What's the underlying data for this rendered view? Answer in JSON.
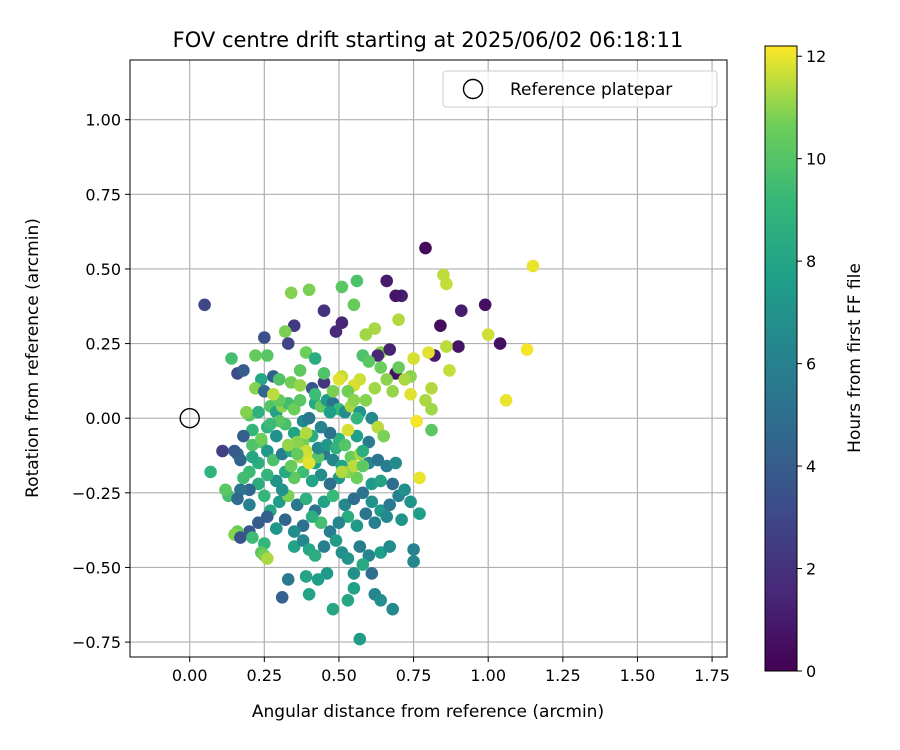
{
  "chart_data": {
    "type": "scatter",
    "title": "FOV centre drift starting at 2025/06/02 06:18:11",
    "xlabel": "Angular distance from reference (arcmin)",
    "ylabel": "Rotation from reference (arcmin)",
    "xlim": [
      -0.2,
      1.8
    ],
    "ylim": [
      -0.8,
      1.2
    ],
    "xticks": [
      0.0,
      0.25,
      0.5,
      0.75,
      1.0,
      1.25,
      1.5,
      1.75
    ],
    "xtick_labels": [
      "0.00",
      "0.25",
      "0.50",
      "0.75",
      "1.00",
      "1.25",
      "1.50",
      "1.75"
    ],
    "yticks": [
      -0.75,
      -0.5,
      -0.25,
      0.0,
      0.25,
      0.5,
      0.75,
      1.0
    ],
    "ytick_labels": [
      "−0.75",
      "−0.50",
      "−0.25",
      "0.00",
      "0.25",
      "0.50",
      "0.75",
      "1.00"
    ],
    "grid": true,
    "legend": {
      "position": "top-right",
      "entries": [
        {
          "label": "Reference platepar",
          "marker": "open-circle"
        }
      ]
    },
    "reference_point": {
      "x": 0.0,
      "y": 0.0
    },
    "colorbar": {
      "label": "Hours from first FF file",
      "colormap": "viridis",
      "range": [
        0,
        12.2
      ],
      "ticks": [
        0,
        2,
        4,
        6,
        8,
        10,
        12
      ],
      "tick_labels": [
        "0",
        "2",
        "4",
        "6",
        "8",
        "10",
        "12"
      ]
    },
    "points": [
      [
        0.79,
        0.57,
        0.3
      ],
      [
        1.15,
        0.51,
        12.0
      ],
      [
        0.05,
        0.38,
        3.0
      ],
      [
        0.85,
        0.48,
        11.5
      ],
      [
        0.86,
        0.45,
        11.6
      ],
      [
        0.66,
        0.46,
        1.0
      ],
      [
        0.71,
        0.41,
        1.2
      ],
      [
        0.69,
        0.41,
        0.8
      ],
      [
        0.99,
        0.38,
        0.5
      ],
      [
        1.04,
        0.25,
        0.6
      ],
      [
        0.84,
        0.31,
        0.4
      ],
      [
        0.82,
        0.21,
        0.9
      ],
      [
        0.9,
        0.24,
        0.7
      ],
      [
        0.91,
        0.36,
        1.1
      ],
      [
        0.51,
        0.32,
        1.4
      ],
      [
        0.49,
        0.29,
        1.6
      ],
      [
        0.45,
        0.36,
        2.0
      ],
      [
        0.35,
        0.31,
        2.3
      ],
      [
        0.25,
        0.27,
        3.4
      ],
      [
        0.56,
        0.46,
        9.8
      ],
      [
        0.51,
        0.44,
        10.2
      ],
      [
        0.55,
        0.38,
        10.5
      ],
      [
        0.4,
        0.43,
        10.8
      ],
      [
        0.34,
        0.42,
        10.9
      ],
      [
        0.62,
        0.3,
        11.3
      ],
      [
        0.7,
        0.33,
        11.4
      ],
      [
        0.59,
        0.28,
        11.2
      ],
      [
        0.64,
        0.22,
        11.0
      ],
      [
        0.75,
        0.2,
        11.8
      ],
      [
        0.8,
        0.22,
        11.9
      ],
      [
        1.13,
        0.23,
        12.1
      ],
      [
        1.0,
        0.28,
        11.7
      ],
      [
        1.06,
        0.06,
        12.0
      ],
      [
        0.86,
        0.24,
        11.5
      ],
      [
        0.87,
        0.16,
        11.6
      ],
      [
        0.81,
        0.1,
        11.4
      ],
      [
        0.79,
        0.06,
        11.3
      ],
      [
        0.81,
        0.03,
        11.2
      ],
      [
        0.76,
        -0.01,
        12.1
      ],
      [
        0.81,
        -0.04,
        10.2
      ],
      [
        0.77,
        -0.2,
        12.0
      ],
      [
        0.74,
        0.14,
        11.0
      ],
      [
        0.69,
        0.15,
        0.6
      ],
      [
        0.63,
        0.21,
        1.5
      ],
      [
        0.67,
        0.23,
        1.3
      ],
      [
        0.57,
        0.13,
        11.7
      ],
      [
        0.55,
        0.11,
        11.8
      ],
      [
        0.51,
        0.14,
        11.6
      ],
      [
        0.45,
        0.12,
        2.2
      ],
      [
        0.41,
        0.1,
        3.6
      ],
      [
        0.14,
        0.2,
        9.6
      ],
      [
        0.16,
        0.15,
        3.2
      ],
      [
        0.18,
        0.16,
        4.0
      ],
      [
        0.22,
        0.21,
        10.4
      ],
      [
        0.26,
        0.21,
        10.1
      ],
      [
        0.28,
        0.14,
        4.2
      ],
      [
        0.3,
        0.13,
        9.9
      ],
      [
        0.32,
        0.29,
        10.8
      ],
      [
        0.33,
        0.25,
        2.8
      ],
      [
        0.39,
        0.22,
        10.6
      ],
      [
        0.42,
        0.2,
        8.5
      ],
      [
        0.37,
        0.16,
        10.3
      ],
      [
        0.34,
        0.12,
        10.7
      ],
      [
        0.37,
        0.11,
        11.1
      ],
      [
        0.24,
        0.13,
        8.1
      ],
      [
        0.22,
        0.1,
        10.9
      ],
      [
        0.25,
        0.09,
        4.5
      ],
      [
        0.2,
        0.01,
        10.2
      ],
      [
        0.21,
        -0.04,
        9.1
      ],
      [
        0.23,
        0.02,
        8.7
      ],
      [
        0.27,
        0.04,
        10.0
      ],
      [
        0.29,
        0.02,
        7.8
      ],
      [
        0.31,
        0.04,
        11.0
      ],
      [
        0.33,
        0.05,
        9.5
      ],
      [
        0.35,
        0.03,
        10.6
      ],
      [
        0.38,
        -0.01,
        6.5
      ],
      [
        0.4,
        0.0,
        5.5
      ],
      [
        0.42,
        0.05,
        8.2
      ],
      [
        0.44,
        0.04,
        10.4
      ],
      [
        0.46,
        0.06,
        7.4
      ],
      [
        0.48,
        0.05,
        5.2
      ],
      [
        0.5,
        0.03,
        9.2
      ],
      [
        0.52,
        0.02,
        6.8
      ],
      [
        0.54,
        0.04,
        11.3
      ],
      [
        0.57,
        0.02,
        7.1
      ],
      [
        0.59,
        0.06,
        10.9
      ],
      [
        0.61,
        0.0,
        6.4
      ],
      [
        0.63,
        -0.03,
        11.5
      ],
      [
        0.65,
        -0.06,
        10.8
      ],
      [
        0.6,
        -0.08,
        5.7
      ],
      [
        0.56,
        -0.06,
        7.7
      ],
      [
        0.53,
        -0.04,
        11.8
      ],
      [
        0.5,
        -0.07,
        8.9
      ],
      [
        0.47,
        -0.05,
        5.1
      ],
      [
        0.44,
        -0.03,
        6.1
      ],
      [
        0.41,
        -0.06,
        8.4
      ],
      [
        0.38,
        -0.08,
        10.7
      ],
      [
        0.35,
        -0.05,
        7.9
      ],
      [
        0.32,
        -0.02,
        9.7
      ],
      [
        0.29,
        -0.06,
        6.9
      ],
      [
        0.26,
        -0.03,
        8.8
      ],
      [
        0.24,
        -0.08,
        10.1
      ],
      [
        0.21,
        -0.09,
        9.9
      ],
      [
        0.18,
        -0.06,
        4.1
      ],
      [
        0.16,
        -0.12,
        4.8
      ],
      [
        0.11,
        -0.11,
        2.7
      ],
      [
        0.15,
        -0.11,
        3.9
      ],
      [
        0.17,
        -0.14,
        4.4
      ],
      [
        0.2,
        -0.18,
        9.3
      ],
      [
        0.23,
        -0.15,
        8.6
      ],
      [
        0.26,
        -0.11,
        7.3
      ],
      [
        0.28,
        -0.14,
        9.8
      ],
      [
        0.31,
        -0.12,
        5.9
      ],
      [
        0.34,
        -0.11,
        8.1
      ],
      [
        0.37,
        -0.13,
        11.4
      ],
      [
        0.39,
        -0.11,
        11.6
      ],
      [
        0.42,
        -0.15,
        7.6
      ],
      [
        0.45,
        -0.12,
        5.6
      ],
      [
        0.48,
        -0.14,
        6.3
      ],
      [
        0.51,
        -0.16,
        7.9
      ],
      [
        0.54,
        -0.13,
        10.5
      ],
      [
        0.57,
        -0.12,
        11.2
      ],
      [
        0.6,
        -0.15,
        6.2
      ],
      [
        0.63,
        -0.14,
        5.4
      ],
      [
        0.66,
        -0.16,
        5.8
      ],
      [
        0.69,
        -0.15,
        6.6
      ],
      [
        0.56,
        -0.2,
        10.6
      ],
      [
        0.53,
        -0.18,
        10.9
      ],
      [
        0.5,
        -0.2,
        7.2
      ],
      [
        0.47,
        -0.22,
        5.0
      ],
      [
        0.44,
        -0.19,
        6.7
      ],
      [
        0.41,
        -0.21,
        8.0
      ],
      [
        0.38,
        -0.18,
        9.4
      ],
      [
        0.35,
        -0.2,
        10.3
      ],
      [
        0.32,
        -0.18,
        8.3
      ],
      [
        0.29,
        -0.21,
        7.0
      ],
      [
        0.26,
        -0.19,
        9.0
      ],
      [
        0.23,
        -0.22,
        8.5
      ],
      [
        0.2,
        -0.24,
        4.6
      ],
      [
        0.17,
        -0.24,
        5.3
      ],
      [
        0.13,
        -0.26,
        9.6
      ],
      [
        0.07,
        -0.18,
        8.9
      ],
      [
        0.12,
        -0.24,
        10.1
      ],
      [
        0.16,
        -0.27,
        4.7
      ],
      [
        0.2,
        -0.29,
        6.0
      ],
      [
        0.25,
        -0.26,
        9.1
      ],
      [
        0.27,
        -0.31,
        8.2
      ],
      [
        0.3,
        -0.28,
        7.5
      ],
      [
        0.33,
        -0.26,
        10.8
      ],
      [
        0.36,
        -0.29,
        5.5
      ],
      [
        0.39,
        -0.27,
        8.7
      ],
      [
        0.42,
        -0.31,
        5.2
      ],
      [
        0.45,
        -0.28,
        7.8
      ],
      [
        0.48,
        -0.26,
        9.2
      ],
      [
        0.52,
        -0.29,
        6.4
      ],
      [
        0.55,
        -0.27,
        4.9
      ],
      [
        0.58,
        -0.25,
        5.3
      ],
      [
        0.61,
        -0.28,
        6.9
      ],
      [
        0.64,
        -0.31,
        7.4
      ],
      [
        0.67,
        -0.29,
        5.6
      ],
      [
        0.7,
        -0.26,
        6.1
      ],
      [
        0.72,
        -0.24,
        6.8
      ],
      [
        0.74,
        -0.28,
        7.1
      ],
      [
        0.77,
        -0.32,
        7.6
      ],
      [
        0.71,
        -0.34,
        7.0
      ],
      [
        0.66,
        -0.33,
        6.5
      ],
      [
        0.62,
        -0.35,
        5.9
      ],
      [
        0.59,
        -0.32,
        5.4
      ],
      [
        0.56,
        -0.36,
        7.3
      ],
      [
        0.53,
        -0.33,
        8.4
      ],
      [
        0.5,
        -0.35,
        6.2
      ],
      [
        0.47,
        -0.38,
        5.8
      ],
      [
        0.44,
        -0.35,
        9.6
      ],
      [
        0.41,
        -0.33,
        8.6
      ],
      [
        0.38,
        -0.36,
        5.1
      ],
      [
        0.35,
        -0.38,
        6.7
      ],
      [
        0.32,
        -0.34,
        4.5
      ],
      [
        0.29,
        -0.37,
        7.2
      ],
      [
        0.26,
        -0.33,
        4.2
      ],
      [
        0.23,
        -0.35,
        4.0
      ],
      [
        0.2,
        -0.38,
        3.8
      ],
      [
        0.16,
        -0.38,
        10.5
      ],
      [
        0.15,
        -0.39,
        10.9
      ],
      [
        0.17,
        -0.4,
        3.5
      ],
      [
        0.21,
        -0.4,
        9.4
      ],
      [
        0.25,
        -0.42,
        9.0
      ],
      [
        0.24,
        -0.45,
        10.2
      ],
      [
        0.25,
        -0.46,
        10.7
      ],
      [
        0.26,
        -0.47,
        11.3
      ],
      [
        0.35,
        -0.43,
        7.9
      ],
      [
        0.38,
        -0.41,
        6.3
      ],
      [
        0.4,
        -0.44,
        8.1
      ],
      [
        0.42,
        -0.46,
        8.5
      ],
      [
        0.45,
        -0.43,
        6.0
      ],
      [
        0.49,
        -0.41,
        7.5
      ],
      [
        0.51,
        -0.45,
        6.8
      ],
      [
        0.53,
        -0.47,
        7.0
      ],
      [
        0.57,
        -0.43,
        5.7
      ],
      [
        0.6,
        -0.46,
        6.3
      ],
      [
        0.64,
        -0.45,
        7.6
      ],
      [
        0.67,
        -0.43,
        6.6
      ],
      [
        0.75,
        -0.44,
        6.1
      ],
      [
        0.75,
        -0.48,
        6.4
      ],
      [
        0.58,
        -0.49,
        8.3
      ],
      [
        0.55,
        -0.52,
        6.9
      ],
      [
        0.61,
        -0.52,
        5.0
      ],
      [
        0.46,
        -0.52,
        7.3
      ],
      [
        0.43,
        -0.54,
        7.7
      ],
      [
        0.39,
        -0.53,
        8.0
      ],
      [
        0.33,
        -0.54,
        5.6
      ],
      [
        0.55,
        -0.57,
        7.8
      ],
      [
        0.31,
        -0.6,
        4.3
      ],
      [
        0.4,
        -0.59,
        7.9
      ],
      [
        0.53,
        -0.61,
        8.1
      ],
      [
        0.62,
        -0.59,
        6.2
      ],
      [
        0.64,
        -0.61,
        6.8
      ],
      [
        0.68,
        -0.64,
        6.5
      ],
      [
        0.48,
        -0.64,
        8.2
      ],
      [
        0.57,
        -0.74,
        7.5
      ],
      [
        0.43,
        -0.13,
        10.0
      ],
      [
        0.36,
        -0.08,
        11.0
      ],
      [
        0.39,
        -0.12,
        11.7
      ],
      [
        0.4,
        -0.15,
        11.9
      ],
      [
        0.34,
        -0.16,
        10.5
      ],
      [
        0.55,
        -0.16,
        11.5
      ],
      [
        0.58,
        -0.16,
        10.3
      ],
      [
        0.51,
        -0.18,
        11.4
      ],
      [
        0.47,
        0.02,
        7.6
      ],
      [
        0.53,
        0.09,
        10.7
      ],
      [
        0.56,
        0.0,
        9.0
      ],
      [
        0.62,
        0.1,
        11.2
      ],
      [
        0.66,
        0.13,
        11.0
      ],
      [
        0.7,
        0.17,
        10.5
      ],
      [
        0.72,
        0.13,
        11.3
      ],
      [
        0.74,
        0.08,
        11.9
      ],
      [
        0.68,
        0.09,
        11.1
      ],
      [
        0.64,
        0.17,
        10.6
      ],
      [
        0.58,
        0.21,
        9.8
      ],
      [
        0.6,
        0.19,
        10.2
      ],
      [
        0.48,
        0.09,
        10.8
      ],
      [
        0.3,
        0.06,
        10.4
      ],
      [
        0.28,
        0.08,
        11.5
      ],
      [
        0.19,
        0.02,
        10.9
      ],
      [
        0.3,
        -0.01,
        10.1
      ],
      [
        0.27,
        -0.02,
        9.3
      ],
      [
        0.36,
        -0.12,
        10.4
      ],
      [
        0.31,
        -0.24,
        7.0
      ],
      [
        0.43,
        -0.1,
        6.5
      ],
      [
        0.46,
        -0.09,
        7.2
      ],
      [
        0.49,
        -0.1,
        8.8
      ],
      [
        0.52,
        -0.09,
        10.0
      ],
      [
        0.58,
        -0.11,
        8.6
      ],
      [
        0.61,
        -0.22,
        7.4
      ],
      [
        0.64,
        -0.21,
        8.0
      ],
      [
        0.68,
        -0.22,
        4.8
      ],
      [
        0.37,
        0.06,
        10.1
      ],
      [
        0.42,
        0.08,
        9.4
      ],
      [
        0.24,
        -0.07,
        10.6
      ],
      [
        0.21,
        -0.13,
        8.1
      ],
      [
        0.18,
        -0.2,
        9.5
      ],
      [
        0.33,
        -0.09,
        11.1
      ],
      [
        0.39,
        -0.05,
        11.4
      ],
      [
        0.55,
        0.06,
        11.0
      ],
      [
        0.5,
        0.13,
        11.9
      ],
      [
        0.45,
        0.15,
        9.9
      ]
    ]
  }
}
